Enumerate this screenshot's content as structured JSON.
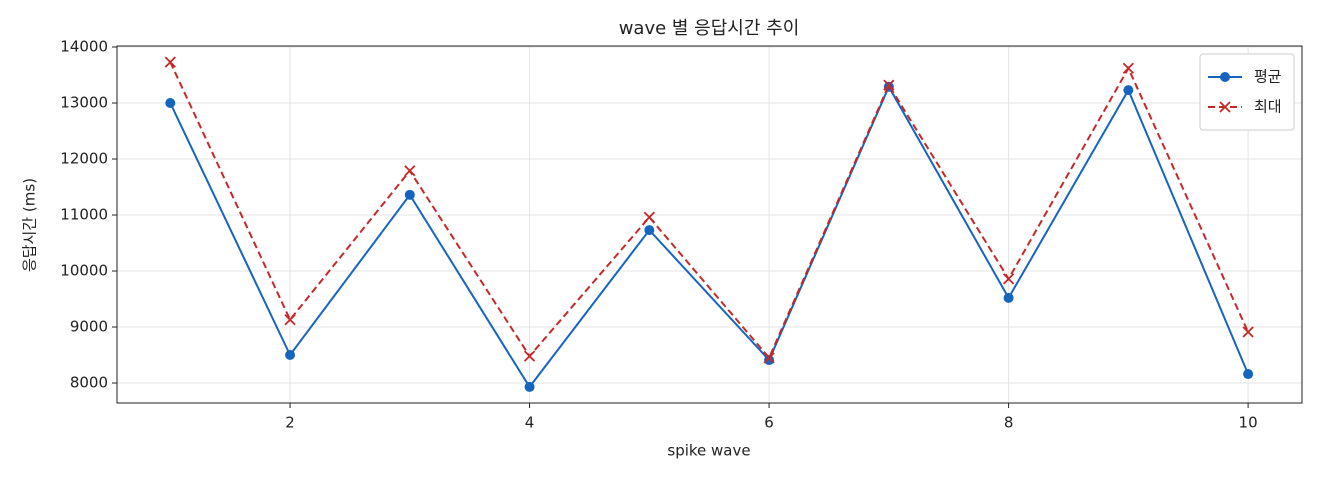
{
  "chart_data": {
    "type": "line",
    "title": "wave 별 응답시간 추이",
    "x_label": "spike wave",
    "y_label": "응답시간 (ms)",
    "x": [
      1,
      2,
      3,
      4,
      5,
      6,
      7,
      8,
      9,
      10
    ],
    "series": [
      {
        "name": "평균",
        "color": "#1565c0",
        "marker": "circle",
        "dashed": false,
        "values": [
          13000,
          8500,
          11360,
          7930,
          10730,
          8410,
          13290,
          9520,
          13230,
          8160
        ]
      },
      {
        "name": "최대",
        "color": "#c62828",
        "marker": "cross",
        "dashed": true,
        "values": [
          13730,
          9130,
          11790,
          8480,
          10960,
          8450,
          13320,
          9860,
          13620,
          8910
        ]
      }
    ],
    "xlim": [
      0.555,
      10.45
    ],
    "xticks": [
      2,
      4,
      6,
      8,
      10
    ],
    "ylim": [
      7643,
      14018
    ],
    "yticks": [
      8000,
      9000,
      10000,
      11000,
      12000,
      13000,
      14000
    ],
    "grid": true,
    "legend": "upper-right"
  }
}
